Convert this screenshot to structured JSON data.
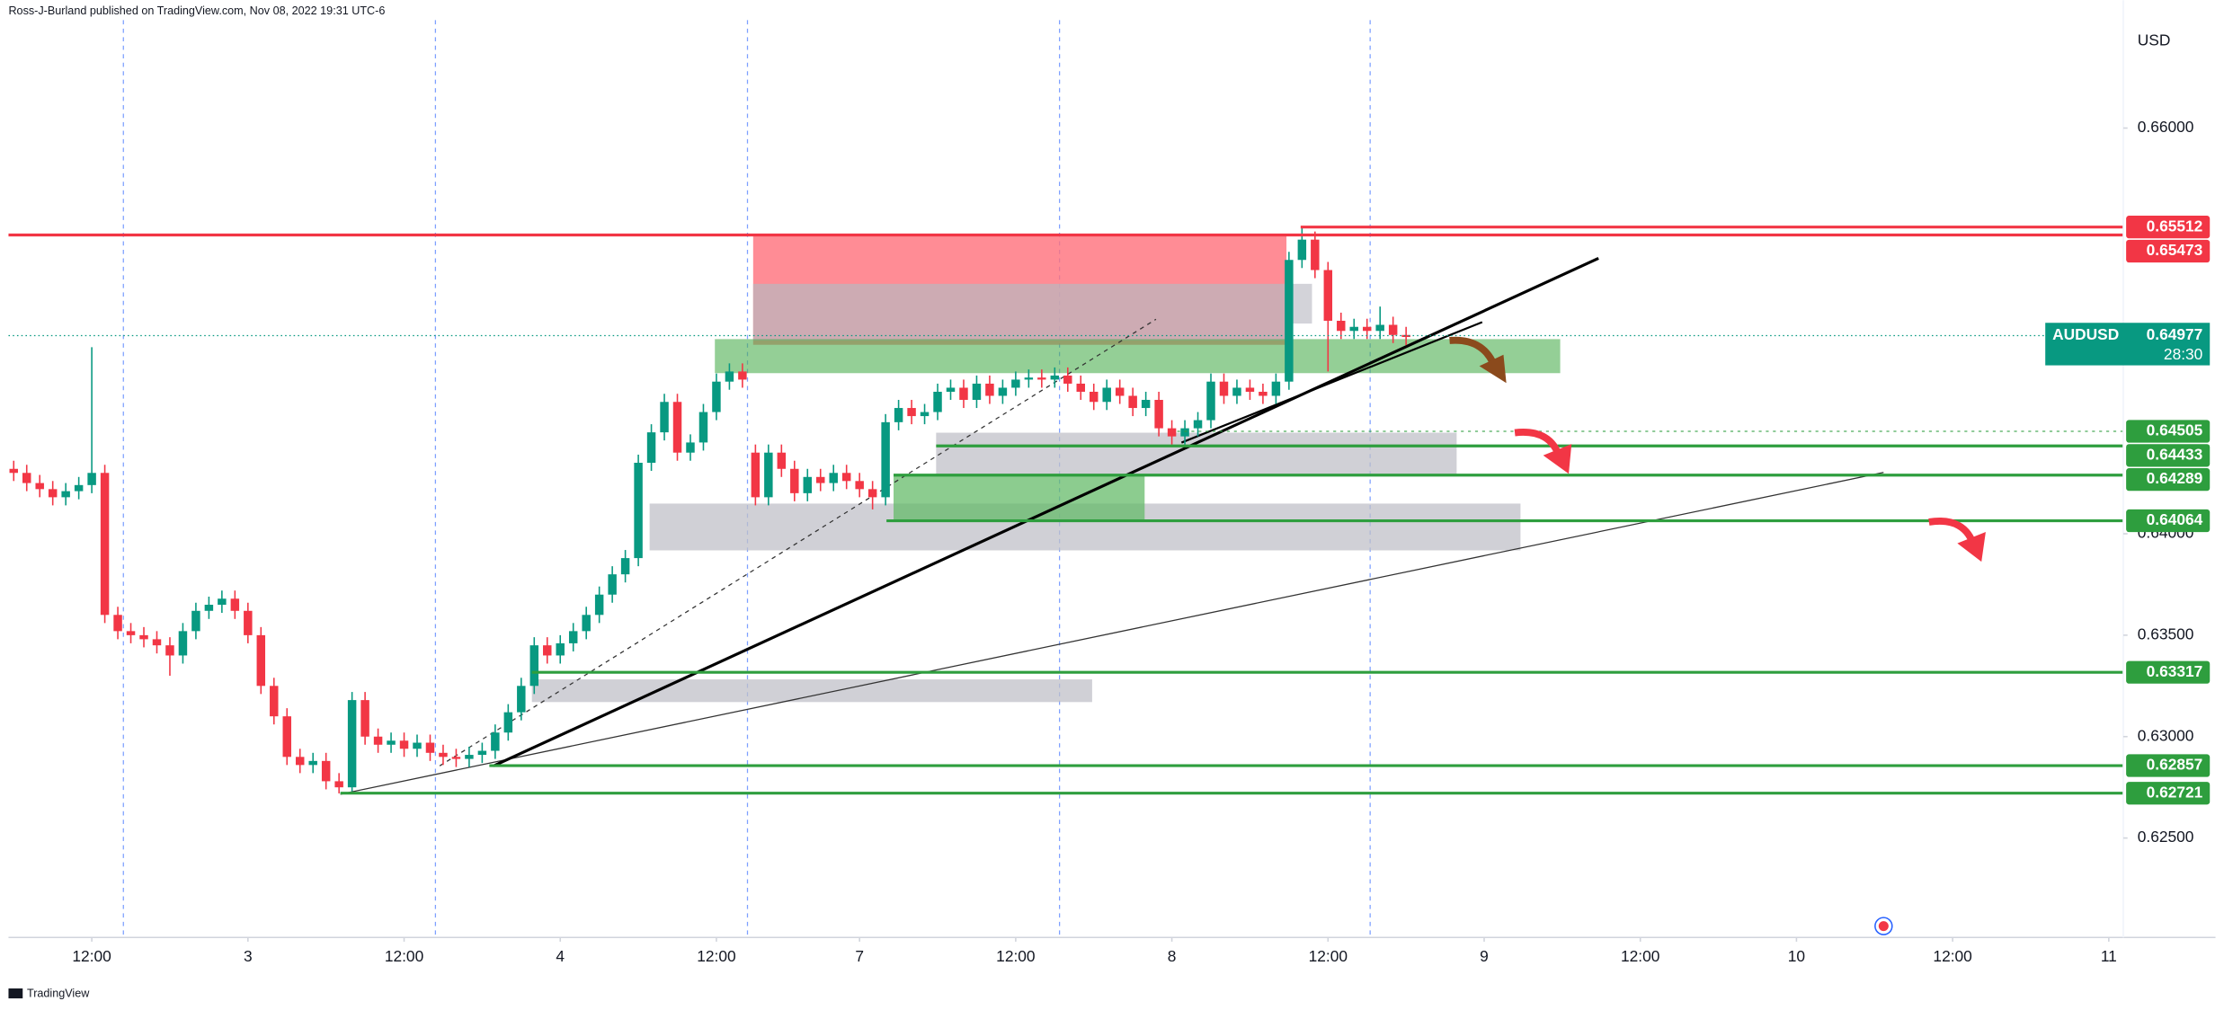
{
  "header": {
    "publisher": "Ross-J-Burland published on TradingView.com, Nov 08, 2022 19:31 UTC-6"
  },
  "chart_data": {
    "type": "candlestick",
    "currency": "USD",
    "symbol": "AUDUSD",
    "countdown": "28:30",
    "last_price": 0.64977,
    "up_color": "#089981",
    "down_color": "#f23645",
    "grid": false,
    "x": [
      -6,
      -5,
      -4,
      -3,
      -2,
      -1,
      0,
      1,
      2,
      3,
      4,
      5,
      6,
      7,
      8,
      9,
      10,
      11,
      12,
      13,
      14,
      15,
      16,
      17,
      18,
      19,
      20,
      21,
      22,
      23,
      24,
      25,
      26,
      27,
      28,
      29,
      30,
      31,
      32,
      33,
      34,
      35,
      36,
      37,
      38,
      39,
      40,
      41,
      42,
      43,
      44,
      45,
      46,
      47,
      48,
      49,
      50,
      51,
      52,
      53,
      54,
      55,
      56,
      57,
      58,
      59,
      60,
      61,
      62,
      63,
      64,
      65,
      66,
      67,
      68,
      69,
      70,
      71,
      72,
      73,
      74,
      75,
      76,
      77,
      78,
      79,
      80,
      81,
      82,
      83,
      84,
      85,
      86,
      87,
      88,
      89,
      90,
      91,
      92,
      93,
      94,
      95,
      96,
      97,
      98,
      99,
      100,
      101
    ],
    "open": [
      0.6432,
      0.643,
      0.6425,
      0.6422,
      0.6418,
      0.6421,
      0.6424,
      0.643,
      0.636,
      0.6352,
      0.635,
      0.6348,
      0.6345,
      0.634,
      0.6352,
      0.6362,
      0.6365,
      0.6368,
      0.6362,
      0.635,
      0.6325,
      0.631,
      0.629,
      0.6286,
      0.6288,
      0.6278,
      0.6275,
      0.6318,
      0.63,
      0.6296,
      0.6298,
      0.6294,
      0.6297,
      0.6292,
      0.629,
      0.6289,
      0.6291,
      0.6293,
      0.6302,
      0.6312,
      0.6325,
      0.6345,
      0.634,
      0.6346,
      0.6352,
      0.636,
      0.637,
      0.638,
      0.6388,
      0.6435,
      0.645,
      0.6465,
      0.644,
      0.6445,
      0.646,
      0.6475,
      0.648,
      0.644,
      0.6418,
      0.644,
      0.6432,
      0.642,
      0.6428,
      0.6425,
      0.643,
      0.6426,
      0.6422,
      0.6418,
      0.6455,
      0.6462,
      0.6458,
      0.646,
      0.647,
      0.6472,
      0.6466,
      0.6474,
      0.6468,
      0.6472,
      0.6476,
      0.6477,
      0.6476,
      0.6478,
      0.6474,
      0.647,
      0.6465,
      0.6472,
      0.6468,
      0.6462,
      0.6466,
      0.6452,
      0.6448,
      0.6452,
      0.6456,
      0.6475,
      0.6468,
      0.6472,
      0.647,
      0.6468,
      0.6475,
      0.6535,
      0.6545,
      0.653,
      0.6505,
      0.65,
      0.6502,
      0.65,
      0.6503,
      0.6498
    ],
    "high": [
      0.6436,
      0.6434,
      0.6429,
      0.6426,
      0.6425,
      0.6428,
      0.6492,
      0.6434,
      0.6364,
      0.6356,
      0.6354,
      0.6352,
      0.6349,
      0.6356,
      0.6366,
      0.6369,
      0.6372,
      0.6372,
      0.6366,
      0.6354,
      0.6329,
      0.6314,
      0.6294,
      0.6292,
      0.6292,
      0.6282,
      0.6322,
      0.6322,
      0.6304,
      0.6302,
      0.6302,
      0.6301,
      0.6301,
      0.6296,
      0.6294,
      0.6295,
      0.6297,
      0.6306,
      0.6316,
      0.6329,
      0.6349,
      0.6349,
      0.635,
      0.6356,
      0.6364,
      0.6374,
      0.6384,
      0.6392,
      0.6439,
      0.6454,
      0.6469,
      0.6469,
      0.6449,
      0.6464,
      0.6479,
      0.6484,
      0.6484,
      0.6444,
      0.6444,
      0.6444,
      0.6436,
      0.6432,
      0.6432,
      0.6434,
      0.6434,
      0.643,
      0.6426,
      0.6459,
      0.6466,
      0.6466,
      0.6464,
      0.6474,
      0.6476,
      0.6476,
      0.6478,
      0.6478,
      0.6476,
      0.648,
      0.6481,
      0.6481,
      0.6482,
      0.6482,
      0.6478,
      0.6474,
      0.6476,
      0.6476,
      0.6472,
      0.647,
      0.647,
      0.6456,
      0.6456,
      0.646,
      0.6479,
      0.6479,
      0.6476,
      0.6476,
      0.6474,
      0.6479,
      0.6539,
      0.6551,
      0.6549,
      0.6534,
      0.6509,
      0.6506,
      0.6506,
      0.6512,
      0.6507,
      0.6502
    ],
    "low": [
      0.6426,
      0.6421,
      0.6418,
      0.6414,
      0.6414,
      0.6417,
      0.642,
      0.6356,
      0.6348,
      0.6346,
      0.6344,
      0.6341,
      0.633,
      0.6336,
      0.6348,
      0.6358,
      0.6361,
      0.6358,
      0.6346,
      0.6321,
      0.6306,
      0.6286,
      0.6282,
      0.6282,
      0.6274,
      0.6272,
      0.6273,
      0.6296,
      0.6292,
      0.6292,
      0.629,
      0.629,
      0.6288,
      0.6286,
      0.6285,
      0.6285,
      0.6287,
      0.6289,
      0.6298,
      0.6308,
      0.6321,
      0.6336,
      0.6336,
      0.6342,
      0.6348,
      0.6356,
      0.6366,
      0.6376,
      0.6384,
      0.6431,
      0.6446,
      0.6436,
      0.6436,
      0.6441,
      0.6456,
      0.6471,
      0.6472,
      0.6414,
      0.6414,
      0.6428,
      0.6416,
      0.6416,
      0.6421,
      0.6421,
      0.6422,
      0.6418,
      0.6412,
      0.6414,
      0.6451,
      0.6454,
      0.6454,
      0.6456,
      0.6466,
      0.6462,
      0.6462,
      0.6464,
      0.6464,
      0.6468,
      0.6472,
      0.6472,
      0.6472,
      0.647,
      0.6466,
      0.6461,
      0.6461,
      0.6464,
      0.6458,
      0.6458,
      0.6448,
      0.6444,
      0.6444,
      0.6448,
      0.6452,
      0.6464,
      0.6464,
      0.6466,
      0.6464,
      0.6464,
      0.6471,
      0.6531,
      0.6526,
      0.648,
      0.6496,
      0.6496,
      0.6496,
      0.6496,
      0.6494,
      0.6493
    ],
    "close": [
      0.643,
      0.6425,
      0.6422,
      0.6418,
      0.6421,
      0.6424,
      0.643,
      0.636,
      0.6352,
      0.635,
      0.6348,
      0.6345,
      0.634,
      0.6352,
      0.6362,
      0.6365,
      0.6368,
      0.6362,
      0.635,
      0.6325,
      0.631,
      0.629,
      0.6286,
      0.6288,
      0.6278,
      0.6275,
      0.6318,
      0.63,
      0.6296,
      0.6298,
      0.6294,
      0.6297,
      0.6292,
      0.629,
      0.6289,
      0.6291,
      0.6293,
      0.6302,
      0.6312,
      0.6325,
      0.6345,
      0.634,
      0.6346,
      0.6352,
      0.636,
      0.637,
      0.638,
      0.6388,
      0.6435,
      0.645,
      0.6465,
      0.644,
      0.6445,
      0.646,
      0.6475,
      0.648,
      0.6476,
      0.6418,
      0.644,
      0.6432,
      0.642,
      0.6428,
      0.6425,
      0.643,
      0.6426,
      0.6422,
      0.6418,
      0.6455,
      0.6462,
      0.6458,
      0.646,
      0.647,
      0.6472,
      0.6466,
      0.6474,
      0.6468,
      0.6472,
      0.6476,
      0.6477,
      0.6476,
      0.6478,
      0.6474,
      0.647,
      0.6465,
      0.6472,
      0.6468,
      0.6462,
      0.6466,
      0.6452,
      0.6448,
      0.6452,
      0.6456,
      0.6475,
      0.6468,
      0.6472,
      0.647,
      0.6468,
      0.6475,
      0.6535,
      0.6545,
      0.653,
      0.6505,
      0.65,
      0.6502,
      0.65,
      0.6503,
      0.6498,
      0.6497
    ],
    "xlim": [
      -6.4,
      163.2
    ],
    "xticks": [
      {
        "value": 0,
        "label": "12:00"
      },
      {
        "value": 12,
        "label": "3"
      },
      {
        "value": 24,
        "label": "12:00"
      },
      {
        "value": 36,
        "label": "4"
      },
      {
        "value": 48,
        "label": "12:00"
      },
      {
        "value": 59,
        "label": "7"
      },
      {
        "value": 71,
        "label": "12:00"
      },
      {
        "value": 83,
        "label": "8"
      },
      {
        "value": 95,
        "label": "12:00"
      },
      {
        "value": 107,
        "label": "9"
      },
      {
        "value": 119,
        "label": "12:00"
      },
      {
        "value": 131,
        "label": "10"
      },
      {
        "value": 143,
        "label": "12:00"
      },
      {
        "value": 155,
        "label": "11"
      }
    ],
    "ylim": [
      0.6201,
      0.6663
    ],
    "yticks": [
      {
        "value": 0.625,
        "label": "0.62500"
      },
      {
        "value": 0.63,
        "label": "0.63000"
      },
      {
        "value": 0.635,
        "label": "0.63500"
      },
      {
        "value": 0.64,
        "label": "0.64000"
      },
      {
        "value": 0.66,
        "label": "0.66000"
      }
    ],
    "levels": [
      {
        "value": 0.65512,
        "color": "#f23645",
        "line_style": "solid"
      },
      {
        "value": 0.65473,
        "color": "#f23645",
        "line_style": "solid"
      },
      {
        "value": 0.64505,
        "color": "#2e9e3e",
        "line_style": "dotted"
      },
      {
        "value": 0.64433,
        "color": "#2e9e3e",
        "line_style": "solid"
      },
      {
        "value": 0.64289,
        "color": "#2e9e3e",
        "line_style": "solid"
      },
      {
        "value": 0.64064,
        "color": "#2e9e3e",
        "line_style": "solid"
      },
      {
        "value": 0.63317,
        "color": "#2e9e3e",
        "line_style": "solid"
      },
      {
        "value": 0.62857,
        "color": "#2e9e3e",
        "line_style": "solid"
      },
      {
        "value": 0.62721,
        "color": "#2e9e3e",
        "line_style": "solid"
      }
    ]
  },
  "footer": {
    "brand": "TradingView"
  }
}
